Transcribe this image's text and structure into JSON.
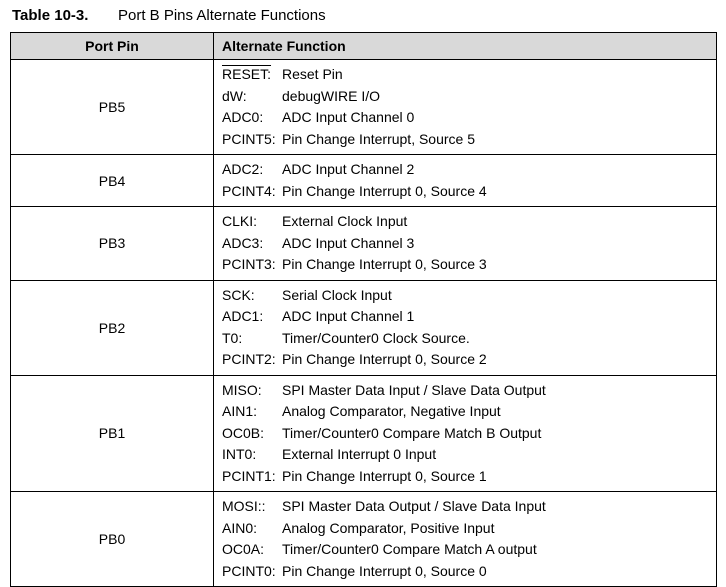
{
  "title": {
    "label": "Table 10-3.",
    "text": "Port B Pins Alternate Functions"
  },
  "table": {
    "columns": [
      "Port Pin",
      "Alternate Function"
    ],
    "rows": [
      {
        "pin": "PB5",
        "functions": [
          {
            "name": "RESET:",
            "description": "Reset Pin"
          },
          {
            "name": "dW:",
            "description": "debugWIRE I/O"
          },
          {
            "name": "ADC0:",
            "description": "ADC Input Channel 0"
          },
          {
            "name": "PCINT5:",
            "description": "Pin Change Interrupt, Source 5"
          }
        ]
      },
      {
        "pin": "PB4",
        "functions": [
          {
            "name": "ADC2:",
            "description": "ADC Input Channel 2"
          },
          {
            "name": "PCINT4:",
            "description": "Pin Change Interrupt 0, Source 4"
          }
        ]
      },
      {
        "pin": "PB3",
        "functions": [
          {
            "name": "CLKI:",
            "description": "External Clock Input"
          },
          {
            "name": "ADC3:",
            "description": "ADC Input Channel 3"
          },
          {
            "name": "PCINT3:",
            "description": "Pin Change Interrupt 0, Source 3"
          }
        ]
      },
      {
        "pin": "PB2",
        "functions": [
          {
            "name": "SCK:",
            "description": "Serial Clock Input"
          },
          {
            "name": "ADC1:",
            "description": "ADC Input Channel 1"
          },
          {
            "name": "T0:",
            "description": "Timer/Counter0 Clock Source."
          },
          {
            "name": "PCINT2:",
            "description": "Pin Change Interrupt 0, Source 2"
          }
        ]
      },
      {
        "pin": "PB1",
        "functions": [
          {
            "name": "MISO:",
            "description": "SPI Master Data Input / Slave Data Output"
          },
          {
            "name": "AIN1:",
            "description": "Analog Comparator, Negative Input"
          },
          {
            "name": "OC0B:",
            "description": "Timer/Counter0 Compare Match B Output"
          },
          {
            "name": "INT0:",
            "description": "External Interrupt 0 Input"
          },
          {
            "name": "PCINT1:",
            "description": "Pin Change Interrupt 0, Source 1"
          }
        ]
      },
      {
        "pin": "PB0",
        "functions": [
          {
            "name": "MOSI::",
            "description": "SPI Master Data Output / Slave Data Input"
          },
          {
            "name": "AIN0:",
            "description": "Analog Comparator, Positive Input"
          },
          {
            "name": "OC0A:",
            "description": "Timer/Counter0 Compare Match A output"
          },
          {
            "name": "PCINT0:",
            "description": "Pin Change Interrupt 0, Source 0"
          }
        ]
      }
    ]
  }
}
